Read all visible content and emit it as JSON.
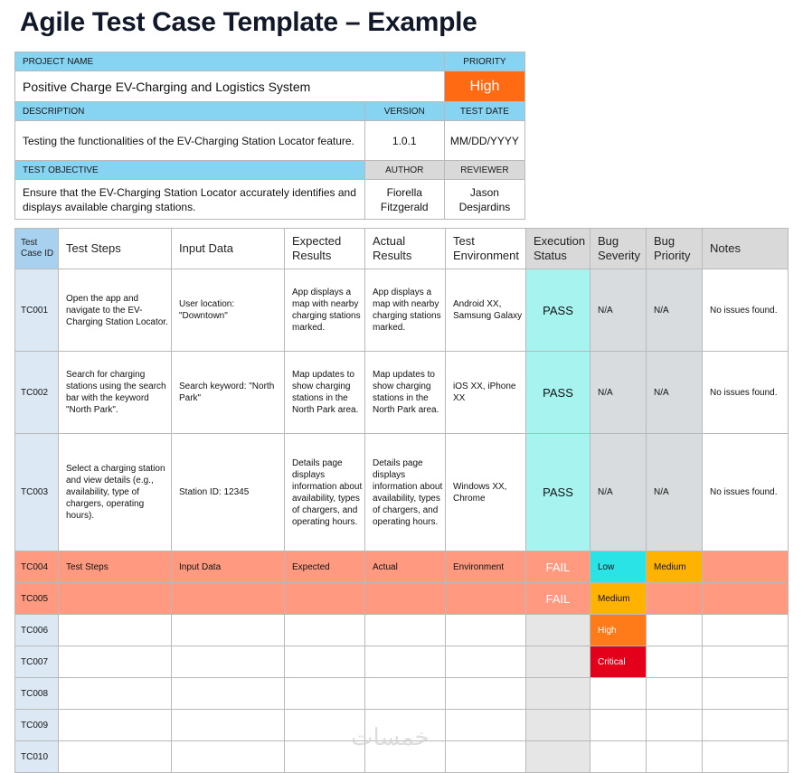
{
  "title": "Agile Test Case Template – Example",
  "project": {
    "project_name_label": "PROJECT NAME",
    "priority_label": "PRIORITY",
    "project_name": "Positive Charge EV-Charging and Logistics System",
    "priority": "High",
    "description_label": "DESCRIPTION",
    "version_label": "VERSION",
    "test_date_label": "TEST DATE",
    "description": "Testing the functionalities of the EV-Charging Station Locator feature.",
    "version": "1.0.1",
    "test_date": "MM/DD/YYYY",
    "objective_label": "TEST OBJECTIVE",
    "author_label": "AUTHOR",
    "reviewer_label": "REVIEWER",
    "objective": "Ensure that the EV-Charging Station Locator accurately identifies and displays available charging stations.",
    "author": "Fiorella Fitzgerald",
    "reviewer": "Jason Desjardins"
  },
  "columns": [
    "Test Case ID",
    "Test Steps",
    "Input Data",
    "Expected Results",
    "Actual Results",
    "Test Environment",
    "Execution Status",
    "Bug Severity",
    "Bug Priority",
    "Notes"
  ],
  "rows": [
    {
      "id": "TC001",
      "steps": "Open the app and navigate to the EV-Charging Station Locator.",
      "input": "User location: \"Downtown\"",
      "expected": "App displays a map with nearby charging stations marked.",
      "actual": "App displays a map with nearby charging stations marked.",
      "env": "Android XX, Samsung Galaxy",
      "status": "PASS",
      "severity": "N/A",
      "priority": "N/A",
      "notes": "No issues found."
    },
    {
      "id": "TC002",
      "steps": "Search for charging stations using the search bar with the keyword \"North Park\".",
      "input": "Search keyword: \"North Park\"",
      "expected": "Map updates to show charging stations in the North Park area.",
      "actual": "Map updates to show charging stations in the North Park area.",
      "env": "iOS XX, iPhone XX",
      "status": "PASS",
      "severity": "N/A",
      "priority": "N/A",
      "notes": "No issues found."
    },
    {
      "id": "TC003",
      "steps": "Select a charging station and view details (e.g., availability, type of chargers, operating hours).",
      "input": "Station ID: 12345",
      "expected": "Details page displays information about availability, types of chargers, and operating hours.",
      "actual": "Details page displays information about availability, types of chargers, and operating hours.",
      "env": "Windows XX, Chrome",
      "status": "PASS",
      "severity": "N/A",
      "priority": "N/A",
      "notes": "No issues found."
    },
    {
      "id": "TC004",
      "steps": "Test Steps",
      "input": "Input Data",
      "expected": "Expected",
      "actual": "Actual",
      "env": "Environment",
      "status": "FAIL",
      "severity": "Low",
      "priority": "Medium",
      "notes": ""
    },
    {
      "id": "TC005",
      "steps": "",
      "input": "",
      "expected": "",
      "actual": "",
      "env": "",
      "status": "FAIL",
      "severity": "Medium",
      "priority": "",
      "notes": ""
    },
    {
      "id": "TC006",
      "severity": "High"
    },
    {
      "id": "TC007",
      "severity": "Critical"
    },
    {
      "id": "TC008"
    },
    {
      "id": "TC009"
    },
    {
      "id": "TC010"
    }
  ],
  "watermark": "خمسات"
}
